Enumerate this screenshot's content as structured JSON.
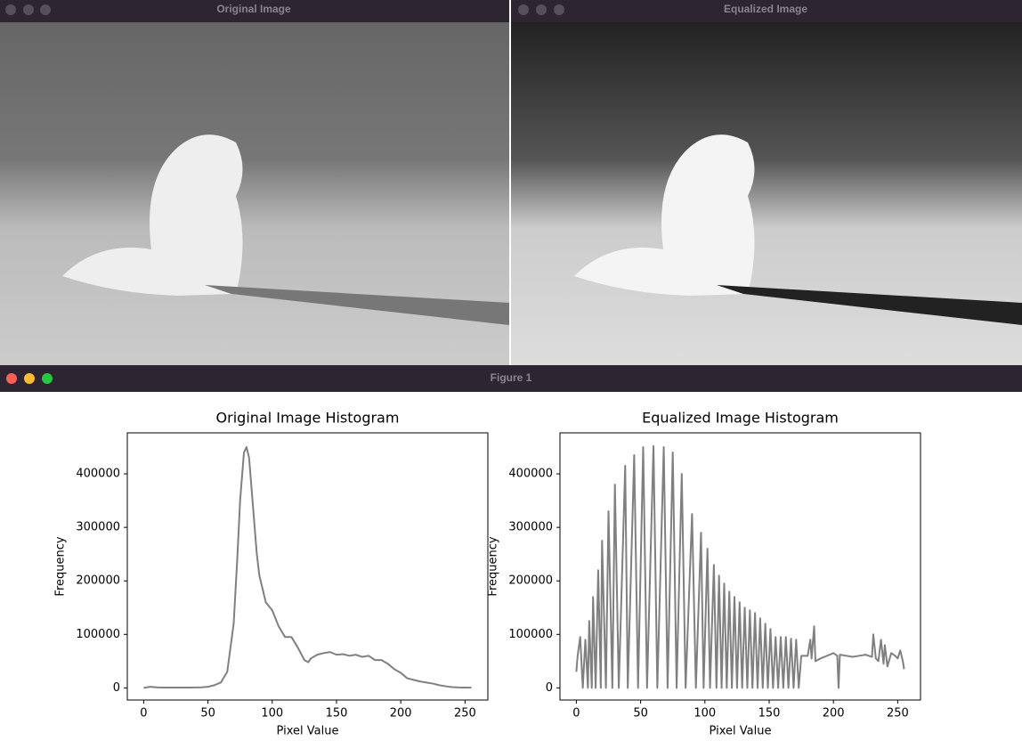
{
  "windows": [
    {
      "title": "Original Image"
    },
    {
      "title": "Equalized Image"
    }
  ],
  "figure_title": "Figure 1",
  "chart_data": [
    {
      "type": "line",
      "title": "Original Image Histogram",
      "xlabel": "Pixel Value",
      "ylabel": "Frequency",
      "color": "#808080",
      "x": [
        0,
        5,
        10,
        15,
        20,
        25,
        30,
        35,
        40,
        45,
        50,
        55,
        60,
        65,
        70,
        73,
        75,
        78,
        80,
        82,
        85,
        88,
        90,
        95,
        100,
        105,
        110,
        115,
        120,
        125,
        128,
        130,
        135,
        140,
        145,
        150,
        155,
        160,
        165,
        170,
        175,
        180,
        185,
        190,
        195,
        200,
        205,
        210,
        215,
        220,
        225,
        230,
        235,
        240,
        245,
        250,
        255
      ],
      "values": [
        0,
        2000,
        1000,
        500,
        500,
        500,
        500,
        500,
        800,
        1000,
        2000,
        5000,
        10000,
        30000,
        120000,
        250000,
        350000,
        440000,
        450000,
        430000,
        340000,
        250000,
        210000,
        160000,
        145000,
        115000,
        95000,
        95000,
        75000,
        52000,
        48000,
        55000,
        62000,
        65000,
        67000,
        62000,
        63000,
        60000,
        62000,
        58000,
        60000,
        52000,
        52000,
        45000,
        35000,
        28000,
        18000,
        15000,
        12000,
        10000,
        8000,
        5000,
        3000,
        1500,
        800,
        500,
        300
      ],
      "xlim": [
        -12.75,
        267.75
      ],
      "xticks": [
        0,
        50,
        100,
        150,
        200,
        250
      ],
      "ylim": [
        -22700,
        476700
      ],
      "yticks": [
        0,
        100000,
        200000,
        300000,
        400000
      ]
    },
    {
      "type": "line",
      "title": "Equalized Image Histogram",
      "xlabel": "Pixel Value",
      "ylabel": "Frequency",
      "color": "#808080",
      "x": [
        0,
        1,
        3,
        5,
        7,
        9,
        10,
        12,
        13,
        15,
        17,
        19,
        20,
        23,
        25,
        28,
        30,
        33,
        38,
        40,
        45,
        48,
        52,
        55,
        60,
        63,
        68,
        71,
        75,
        78,
        82,
        85,
        90,
        93,
        97,
        99,
        102,
        104,
        107,
        109,
        111,
        113,
        115,
        117,
        119,
        121,
        123,
        125,
        127,
        129,
        131,
        133,
        135,
        137,
        139,
        141,
        143,
        145,
        147,
        149,
        151,
        153,
        155,
        157,
        159,
        161,
        163,
        165,
        167,
        169,
        171,
        173,
        175,
        180,
        182,
        183,
        185,
        186,
        190,
        195,
        200,
        203,
        204,
        205,
        210,
        215,
        220,
        225,
        230,
        231,
        233,
        235,
        237,
        239,
        240,
        242,
        245,
        248,
        250,
        252,
        254,
        255
      ],
      "values": [
        30000,
        60000,
        95000,
        0,
        90000,
        0,
        125000,
        0,
        170000,
        0,
        220000,
        0,
        275000,
        0,
        330000,
        0,
        380000,
        0,
        415000,
        0,
        435000,
        0,
        450000,
        0,
        452000,
        0,
        450000,
        0,
        440000,
        0,
        400000,
        0,
        325000,
        0,
        290000,
        0,
        260000,
        0,
        230000,
        0,
        210000,
        0,
        195000,
        0,
        180000,
        0,
        170000,
        0,
        160000,
        0,
        150000,
        0,
        145000,
        0,
        140000,
        0,
        130000,
        0,
        120000,
        0,
        110000,
        0,
        95000,
        0,
        95000,
        0,
        95000,
        0,
        92000,
        0,
        90000,
        0,
        60000,
        60000,
        90000,
        55000,
        115000,
        50000,
        55000,
        60000,
        65000,
        60000,
        0,
        62000,
        60000,
        58000,
        60000,
        62000,
        58000,
        100000,
        55000,
        50000,
        90000,
        45000,
        80000,
        40000,
        65000,
        60000,
        55000,
        70000,
        50000,
        35000
      ],
      "xlim": [
        -12.75,
        267.75
      ],
      "xticks": [
        0,
        50,
        100,
        150,
        200,
        250
      ],
      "ylim": [
        -22700,
        476700
      ],
      "yticks": [
        0,
        100000,
        200000,
        300000,
        400000
      ]
    }
  ]
}
